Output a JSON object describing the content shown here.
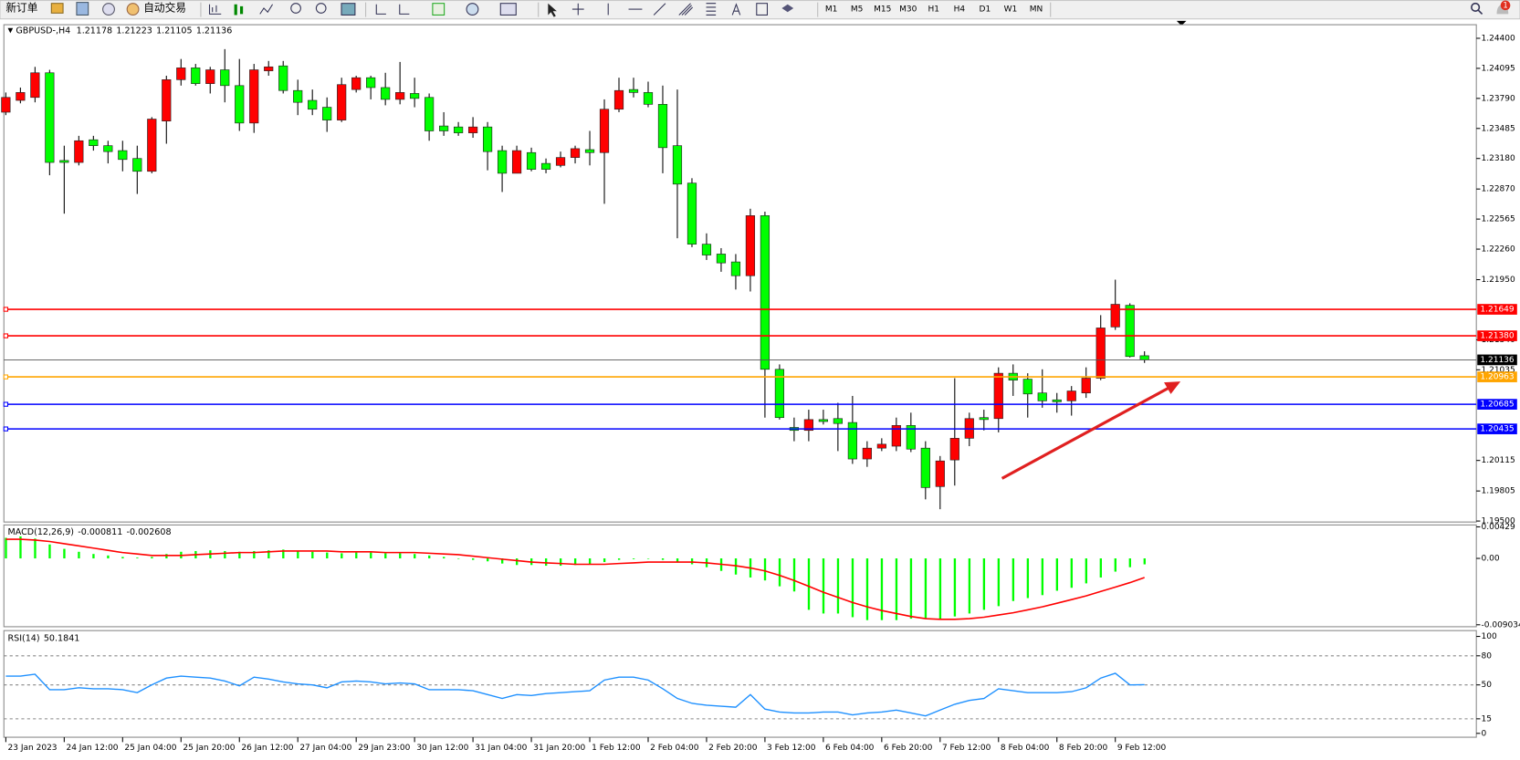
{
  "toolbar": {
    "new_order": "新订单",
    "auto_trading": "自动交易",
    "timeframes": [
      "M1",
      "M5",
      "M15",
      "M30",
      "H1",
      "H4",
      "D1",
      "W1",
      "MN"
    ],
    "notifications": 1
  },
  "chart_data": [
    {
      "type": "candlestick",
      "symbol": "GBPUSD-,H4",
      "categories": [
        "23 Jan 2023",
        null,
        null,
        null,
        "24 Jan 12:00",
        null,
        null,
        null,
        "25 Jan 04:00",
        null,
        null,
        null,
        "25 Jan 20:00",
        null,
        null,
        null,
        "26 Jan 12:00",
        null,
        null,
        null,
        "27 Jan 04:00",
        null,
        null,
        null,
        "29 Jan 23:00",
        null,
        null,
        null,
        "30 Jan 12:00",
        null,
        null,
        null,
        "31 Jan 04:00",
        null,
        null,
        null,
        "31 Jan 20:00",
        null,
        null,
        null,
        "1 Feb 12:00",
        null,
        null,
        null,
        "2 Feb 04:00",
        null,
        null,
        null,
        "2 Feb 20:00",
        null,
        null,
        null,
        "3 Feb 12:00",
        null,
        null,
        null,
        "6 Feb 04:00",
        null,
        null,
        null,
        "6 Feb 20:00",
        null,
        null,
        null,
        "7 Feb 12:00",
        null,
        null,
        null,
        "8 Feb 04:00",
        null,
        null,
        null,
        "8 Feb 20:00",
        null,
        null,
        null,
        "9 Feb 12:00",
        null,
        null
      ],
      "open": [
        1.2365,
        1.2377,
        1.238,
        1.2405,
        1.2316,
        1.2314,
        1.2337,
        1.2331,
        1.2326,
        1.2318,
        1.2305,
        1.2356,
        1.2398,
        1.241,
        1.2394,
        1.2408,
        1.2392,
        1.2354,
        1.2407,
        1.2412,
        1.2387,
        1.2377,
        1.237,
        1.2357,
        1.2388,
        1.24,
        1.239,
        1.2378,
        1.2384,
        1.238,
        1.2351,
        1.235,
        1.2344,
        1.235,
        1.2326,
        1.2303,
        1.2324,
        1.2313,
        1.2311,
        1.2319,
        1.2327,
        1.2324,
        1.2368,
        1.2388,
        1.2385,
        1.2373,
        1.2331,
        1.2293,
        1.2231,
        1.2221,
        1.2213,
        1.2199,
        1.226,
        1.2104,
        1.2045,
        1.2042,
        1.2053,
        1.2054,
        1.205,
        1.2013,
        1.2024,
        1.2026,
        1.2047,
        1.2024,
        1.1985,
        1.2012,
        1.2034,
        1.2055,
        1.2054,
        1.21,
        1.2094,
        1.208,
        1.2073,
        1.2072,
        1.208,
        1.2095,
        1.2147,
        1.2169,
        1.21178
      ],
      "high": [
        1.2385,
        1.239,
        1.2411,
        1.2408,
        1.2331,
        1.2341,
        1.2341,
        1.2336,
        1.2336,
        1.2331,
        1.236,
        1.2402,
        1.2419,
        1.2414,
        1.2411,
        1.2429,
        1.2419,
        1.2414,
        1.2417,
        1.2417,
        1.2398,
        1.2388,
        1.238,
        1.24,
        1.2402,
        1.2402,
        1.2405,
        1.2416,
        1.24,
        1.2384,
        1.2365,
        1.2355,
        1.236,
        1.2355,
        1.2331,
        1.2331,
        1.2329,
        1.2318,
        1.2325,
        1.2331,
        1.2346,
        1.2378,
        1.24,
        1.24,
        1.2396,
        1.2392,
        1.2388,
        1.2298,
        1.2242,
        1.2227,
        1.2221,
        1.2267,
        1.2264,
        1.2109,
        1.2055,
        1.2063,
        1.2063,
        1.207,
        1.2077,
        1.2031,
        1.2034,
        1.2055,
        1.206,
        1.2031,
        1.2016,
        1.2095,
        1.206,
        1.2063,
        1.2106,
        1.2109,
        1.21,
        1.2104,
        1.208,
        1.2087,
        1.2106,
        1.2159,
        1.2195,
        1.2171,
        1.21223
      ],
      "low": [
        1.2362,
        1.2374,
        1.2375,
        1.2301,
        1.2262,
        1.2311,
        1.2326,
        1.2313,
        1.2305,
        1.2282,
        1.2303,
        1.2333,
        1.2392,
        1.2392,
        1.2384,
        1.2375,
        1.2346,
        1.2344,
        1.2402,
        1.2384,
        1.2362,
        1.2362,
        1.2345,
        1.2355,
        1.2385,
        1.2378,
        1.2372,
        1.2373,
        1.237,
        1.2336,
        1.2341,
        1.2341,
        1.2339,
        1.2306,
        1.2284,
        1.2303,
        1.2305,
        1.2303,
        1.2309,
        1.2313,
        1.2311,
        1.2272,
        1.2365,
        1.238,
        1.237,
        1.2303,
        1.2237,
        1.2228,
        1.2215,
        1.2203,
        1.2185,
        1.2183,
        1.2055,
        1.2053,
        1.2031,
        1.2031,
        1.2048,
        1.2021,
        1.2008,
        1.2005,
        1.2021,
        1.2021,
        1.202,
        1.1972,
        1.1962,
        1.1986,
        1.2026,
        1.2042,
        1.204,
        1.2077,
        1.2055,
        1.2065,
        1.206,
        1.2057,
        1.2075,
        1.2093,
        1.2144,
        1.2116,
        1.21105
      ],
      "close": [
        1.238,
        1.2385,
        1.2405,
        1.2314,
        1.2314,
        1.2336,
        1.2331,
        1.2325,
        1.2317,
        1.2305,
        1.2358,
        1.2398,
        1.241,
        1.2394,
        1.2408,
        1.2392,
        1.2354,
        1.2408,
        1.2411,
        1.2387,
        1.2375,
        1.2368,
        1.2357,
        1.2393,
        1.24,
        1.239,
        1.2378,
        1.2385,
        1.2379,
        1.2346,
        1.2346,
        1.2344,
        1.235,
        1.2325,
        1.2303,
        1.2326,
        1.2307,
        1.2307,
        1.2319,
        1.2328,
        1.2324,
        1.2368,
        1.2387,
        1.2385,
        1.2373,
        1.2329,
        1.2292,
        1.2231,
        1.222,
        1.2212,
        1.2199,
        1.226,
        1.2104,
        1.2055,
        1.2042,
        1.2053,
        1.2051,
        1.2049,
        1.2013,
        1.2024,
        1.2028,
        1.2047,
        1.2023,
        1.1984,
        1.2011,
        1.2034,
        1.2054,
        1.2053,
        1.21,
        1.2093,
        1.2079,
        1.2072,
        1.2071,
        1.2082,
        1.2095,
        1.2146,
        1.217,
        1.2117,
        1.21136
      ],
      "up_color": "#ff0000",
      "down_color": "#00ff00",
      "ylim": [
        1.1949,
        1.24538
      ],
      "yticks": [
        {
          "value": 1.244,
          "label": "1.24400"
        },
        1.24095,
        {
          "value": 1.2379,
          "label": "1.23790"
        },
        1.23485,
        {
          "value": 1.2318,
          "label": "1.23180"
        },
        {
          "value": 1.2287,
          "label": "1.22870"
        },
        1.22565,
        {
          "value": 1.2226,
          "label": "1.22260"
        },
        {
          "value": 1.2195,
          "label": "1.21950"
        },
        {
          "value": 1.2134,
          "label": "1.21340"
        },
        1.21035,
        1.20115,
        1.19805,
        {
          "value": 1.195,
          "label": "1.19500"
        }
      ],
      "grid": false,
      "hlines": [
        {
          "value": 1.21649,
          "color": "#ff0000"
        },
        {
          "value": 1.2138,
          "label": "1.21380",
          "color": "#ff0000"
        },
        {
          "value": 1.20963,
          "color": "#ffa500"
        },
        {
          "value": 1.20685,
          "color": "#0000ff"
        },
        {
          "value": 1.20435,
          "color": "#0000ff"
        }
      ]
    },
    {
      "type": "macd",
      "label": "MACD(12,26,9)",
      "histogram": [
        0.0028,
        0.003,
        0.0027,
        0.0019,
        0.0013,
        0.0009,
        0.0006,
        0.0004,
        0.0002,
        0.0001,
        0.0002,
        0.0006,
        0.0009,
        0.001,
        0.0011,
        0.001,
        0.0009,
        0.001,
        0.0011,
        0.0012,
        0.001,
        0.0009,
        0.0008,
        0.0007,
        0.0008,
        0.0008,
        0.0007,
        0.0007,
        0.0006,
        0.0004,
        0.0002,
        0,
        -0.0002,
        -0.0004,
        -0.0007,
        -0.0009,
        -0.0009,
        -0.001,
        -0.001,
        -0.0009,
        -0.0008,
        -0.0005,
        -0.0002,
        -0.0001,
        0,
        -0.0002,
        -0.0005,
        -0.0008,
        -0.0012,
        -0.0017,
        -0.0022,
        -0.0026,
        -0.003,
        -0.0038,
        -0.0045,
        -0.007,
        -0.0075,
        -0.0075,
        -0.008,
        -0.0084,
        -0.0084,
        -0.0084,
        -0.0082,
        -0.0082,
        -0.0082,
        -0.0079,
        -0.0075,
        -0.007,
        -0.0065,
        -0.0058,
        -0.0054,
        -0.005,
        -0.0044,
        -0.004,
        -0.0034,
        -0.0026,
        -0.0018,
        -0.0012,
        -0.000811
      ],
      "signal": [
        0.0026,
        0.0026,
        0.0025,
        0.0023,
        0.002,
        0.0017,
        0.0014,
        0.0011,
        0.0008,
        0.0006,
        0.0004,
        0.0004,
        0.0004,
        0.0005,
        0.0006,
        0.0007,
        0.0008,
        0.0008,
        0.0009,
        0.001,
        0.001,
        0.001,
        0.001,
        0.0009,
        0.0009,
        0.0009,
        0.0008,
        0.0008,
        0.0008,
        0.0007,
        0.0006,
        0.0005,
        0.0003,
        0.0001,
        -0.0001,
        -0.0003,
        -0.0005,
        -0.0006,
        -0.0007,
        -0.0008,
        -0.0008,
        -0.0008,
        -0.0007,
        -0.0006,
        -0.0005,
        -0.0005,
        -0.0005,
        -0.0005,
        -0.0006,
        -0.0008,
        -0.001,
        -0.0013,
        -0.0017,
        -0.0023,
        -0.003,
        -0.0038,
        -0.0046,
        -0.0053,
        -0.006,
        -0.0066,
        -0.0071,
        -0.0075,
        -0.0079,
        -0.0082,
        -0.0083,
        -0.0083,
        -0.0082,
        -0.008,
        -0.0077,
        -0.0074,
        -0.007,
        -0.0066,
        -0.0061,
        -0.0056,
        -0.0051,
        -0.0045,
        -0.0039,
        -0.0033,
        -0.002608
      ],
      "histogram_color": "#00ff00",
      "signal_color": "#ff0000",
      "ylim": [
        -0.009034,
        0.00429
      ],
      "yticks": [
        0.00429,
        {
          "value": 0,
          "label": "0.00"
        },
        -0.009034
      ]
    },
    {
      "type": "line",
      "label": "RSI(14)",
      "values": [
        59,
        59,
        61,
        45,
        45,
        47,
        46,
        46,
        45,
        42,
        50,
        57,
        59,
        58,
        57,
        54,
        49,
        58,
        56,
        53,
        51,
        50,
        47,
        53,
        54,
        53,
        51,
        52,
        51,
        45,
        45,
        45,
        44,
        40,
        36,
        40,
        39,
        41,
        42,
        43,
        44,
        55,
        58,
        58,
        55,
        46,
        36,
        31,
        29,
        28,
        27,
        40,
        25,
        22,
        21,
        21,
        22,
        22,
        19,
        21,
        22,
        24,
        21,
        18,
        24,
        30,
        34,
        36,
        46,
        44,
        42,
        42,
        42,
        43,
        47,
        57,
        62,
        50,
        50.1841
      ],
      "color": "#1e90ff",
      "ylim": [
        0,
        100
      ],
      "yticks": [
        100,
        80,
        50,
        15,
        0
      ],
      "grid": "dashed"
    }
  ]
}
